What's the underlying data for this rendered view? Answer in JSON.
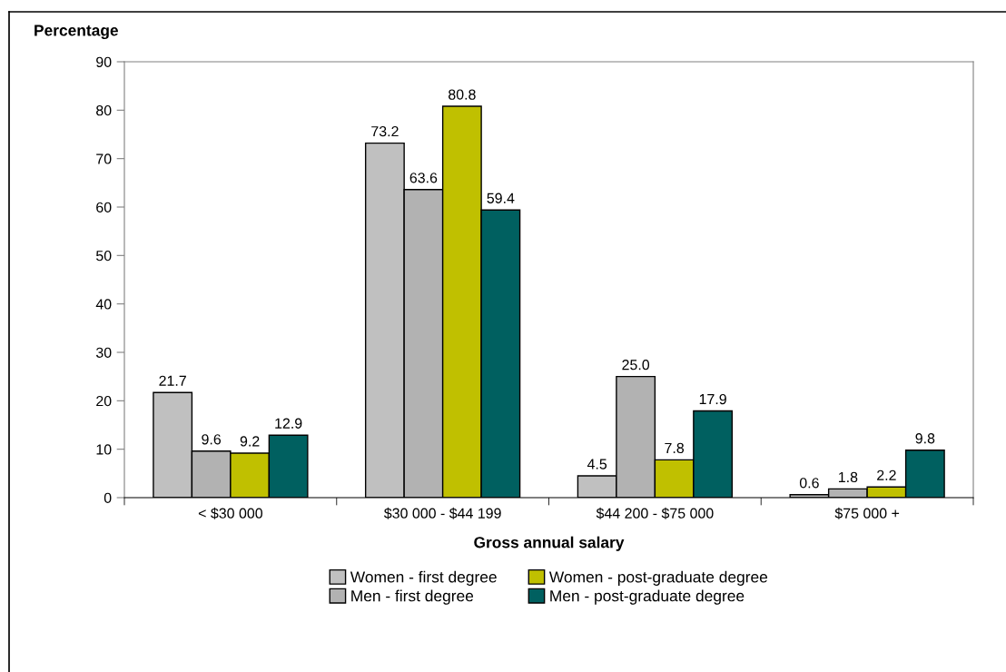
{
  "chart_data": {
    "type": "bar",
    "categories": [
      "< $30 000",
      "$30 000 - $44 199",
      "$44 200 - $75 000",
      "$75 000 +"
    ],
    "series": [
      {
        "name": "Women - first degree",
        "color": "#c0c0c0",
        "values": [
          21.7,
          73.2,
          4.5,
          0.6
        ],
        "value_labels": [
          "21.7",
          "73.2",
          "4.5",
          "0.6"
        ]
      },
      {
        "name": "Men - first degree",
        "color": "#b2b2b2",
        "values": [
          9.6,
          63.6,
          25.0,
          1.8
        ],
        "value_labels": [
          "9.6",
          "63.6",
          "25.0",
          "1.8"
        ]
      },
      {
        "name": "Women - post-graduate degree",
        "color": "#c0c000",
        "values": [
          9.2,
          80.8,
          7.8,
          2.2
        ],
        "value_labels": [
          "9.2",
          "80.8",
          "7.8",
          "2.2"
        ]
      },
      {
        "name": "Men - post-graduate degree",
        "color": "#006060",
        "values": [
          12.9,
          59.4,
          17.9,
          9.8
        ],
        "value_labels": [
          "12.9",
          "59.4",
          "17.9",
          "9.8"
        ]
      }
    ],
    "xlabel": "Gross annual salary",
    "ylabel": "Percentage",
    "ylim": [
      0,
      90
    ],
    "yticks": [
      0,
      10,
      20,
      30,
      40,
      50,
      60,
      70,
      80,
      90
    ],
    "grid": false,
    "legend": "bottom"
  }
}
